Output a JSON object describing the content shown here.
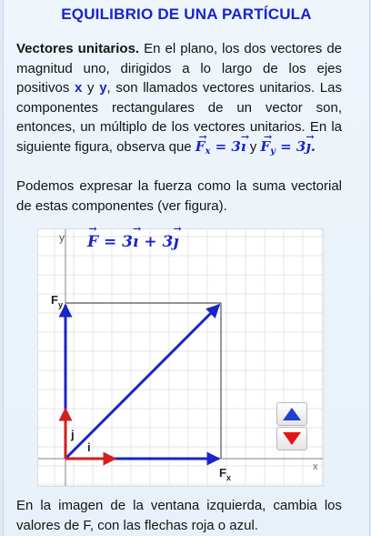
{
  "title": "EQUILIBRIO DE UNA PARTÍCULA",
  "p1": {
    "term": "Vectores unitarios.",
    "t1": " En el plano, los dos vectores de magnitud uno, dirigidos a lo largo de los ejes positivos ",
    "x": "x",
    "y_conj": " y ",
    "y": "y",
    "t2": ", son llamados vectores unitarios. Las componentes rectangulares de un vector son, entonces, un múltiplo de los vectores unitarios. En la siguiente figura, observa que ",
    "fx_sym": "F",
    "fx_sub": "x",
    "fx_val": " = 3",
    "unit_i": "ı",
    "and": " y ",
    "fy_sym": "F",
    "fy_sub": "y",
    "fy_val": " = 3",
    "unit_j": "ȷ",
    "end": "."
  },
  "p2": "Podemos expresar la fuerza como la suma vectorial de estas componentes (ver figura).",
  "figure": {
    "equation": {
      "sym": "F",
      "mid": " = 3",
      "i": "ı",
      "plus": " + 3",
      "j": "ȷ"
    },
    "axis_y": "y",
    "axis_x": "x",
    "label_fy": "F",
    "label_fy_sub": "y",
    "label_fx": "F",
    "label_fx_sub": "x",
    "label_j": "j",
    "label_i": "i",
    "vector": {
      "fx": 3,
      "fy": 3
    },
    "colors": {
      "force": "#1a24c8",
      "unit": "#d02020",
      "rect": "#555555",
      "grid": "#e6e6e6"
    }
  },
  "controls": {
    "up_icon": "triangle-up-icon",
    "down_icon": "triangle-down-icon"
  },
  "p3": "En la imagen de la ventana izquierda, cambia los valores de F, con las flechas roja o azul."
}
